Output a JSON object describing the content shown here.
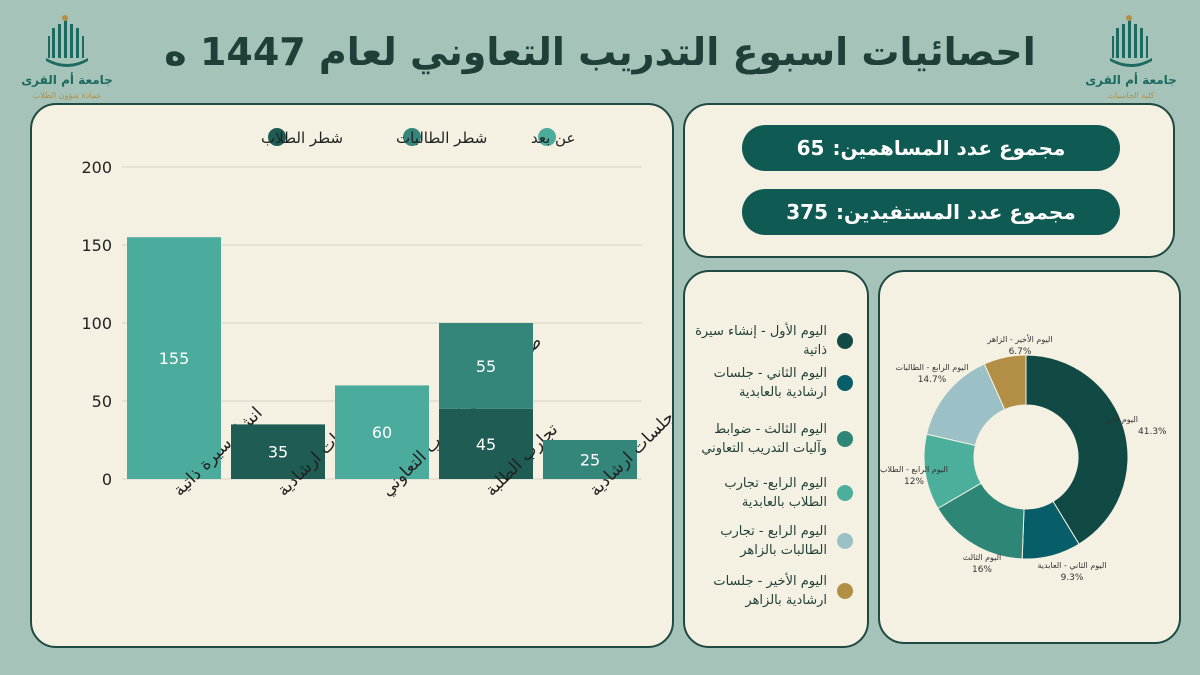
{
  "page": {
    "title": "احصائيات اسبوع التدريب التعاوني لعام 1447 ه",
    "logo_left": {
      "name": "جامعة أم القرى",
      "sub": "عمادة شؤون الطلاب"
    },
    "logo_right": {
      "name": "جامعة أم القرى",
      "sub": "كلية الحاسبات"
    }
  },
  "totals": {
    "contributors_label": "مجموع عدد المساهمين:",
    "contributors_value": "65",
    "beneficiaries_label": "مجموع عدد المستفيدين:",
    "beneficiaries_value": "375"
  },
  "chart_data": [
    {
      "type": "bar",
      "stacked": true,
      "categories": [
        "انشاء سيرة ذاتية",
        "جلسات ارشادية",
        "ضوابط واليات التدريب التعاوني",
        "تجارب الطلبة",
        "جلسات ارشادية"
      ],
      "series": [
        {
          "name": "شطر الطلاب",
          "color": "#1e5c54",
          "values": [
            0,
            35,
            0,
            45,
            0
          ]
        },
        {
          "name": "شطر الطالبات",
          "color": "#34857a",
          "values": [
            0,
            0,
            0,
            55,
            25
          ]
        },
        {
          "name": "عن بعد",
          "color": "#4bab9c",
          "values": [
            155,
            0,
            60,
            0,
            0
          ]
        }
      ],
      "ylim": [
        0,
        200
      ],
      "yticks": [
        0,
        50,
        100,
        150,
        200
      ],
      "legend_position": "top",
      "grid": true
    },
    {
      "type": "pie",
      "donut": true,
      "slices": [
        {
          "label": "اليوم الاول",
          "value": 41.3,
          "pct_label": "41.3%",
          "color": "#114a44"
        },
        {
          "label": "اليوم الثاني - العابدية",
          "value": 9.3,
          "pct_label": "9.3%",
          "color": "#075d68"
        },
        {
          "label": "اليوم الثالث",
          "value": 16,
          "pct_label": "16%",
          "color": "#2d8676"
        },
        {
          "label": "اليوم الرابع - الطلاب",
          "value": 12,
          "pct_label": "12%",
          "color": "#4caf9c"
        },
        {
          "label": "اليوم الرابع - الطالبات",
          "value": 14.7,
          "pct_label": "14.7%",
          "color": "#9bc1c7"
        },
        {
          "label": "اليوم الأخير - الزاهر",
          "value": 6.7,
          "pct_label": "6.7%",
          "color": "#b38e45"
        }
      ]
    }
  ],
  "legend": [
    {
      "text": "اليوم الأول - إنشاء سيرة ذاتية",
      "color": "#114a44"
    },
    {
      "text": "اليوم الثاني - جلسات ارشادية بالعابدية",
      "color": "#075d68"
    },
    {
      "text": "اليوم الثالث - ضوابط وآليات التدريب التعاوني",
      "color": "#2d8676"
    },
    {
      "text": "اليوم الرابع- تجارب الطلاب بالعابدية",
      "color": "#4caf9c"
    },
    {
      "text": "اليوم الرابع - تجارب الطالبات بالزاهر",
      "color": "#9bc1c7"
    },
    {
      "text": "اليوم الأخير - جلسات ارشادية بالزاهر",
      "color": "#b38e45"
    }
  ]
}
